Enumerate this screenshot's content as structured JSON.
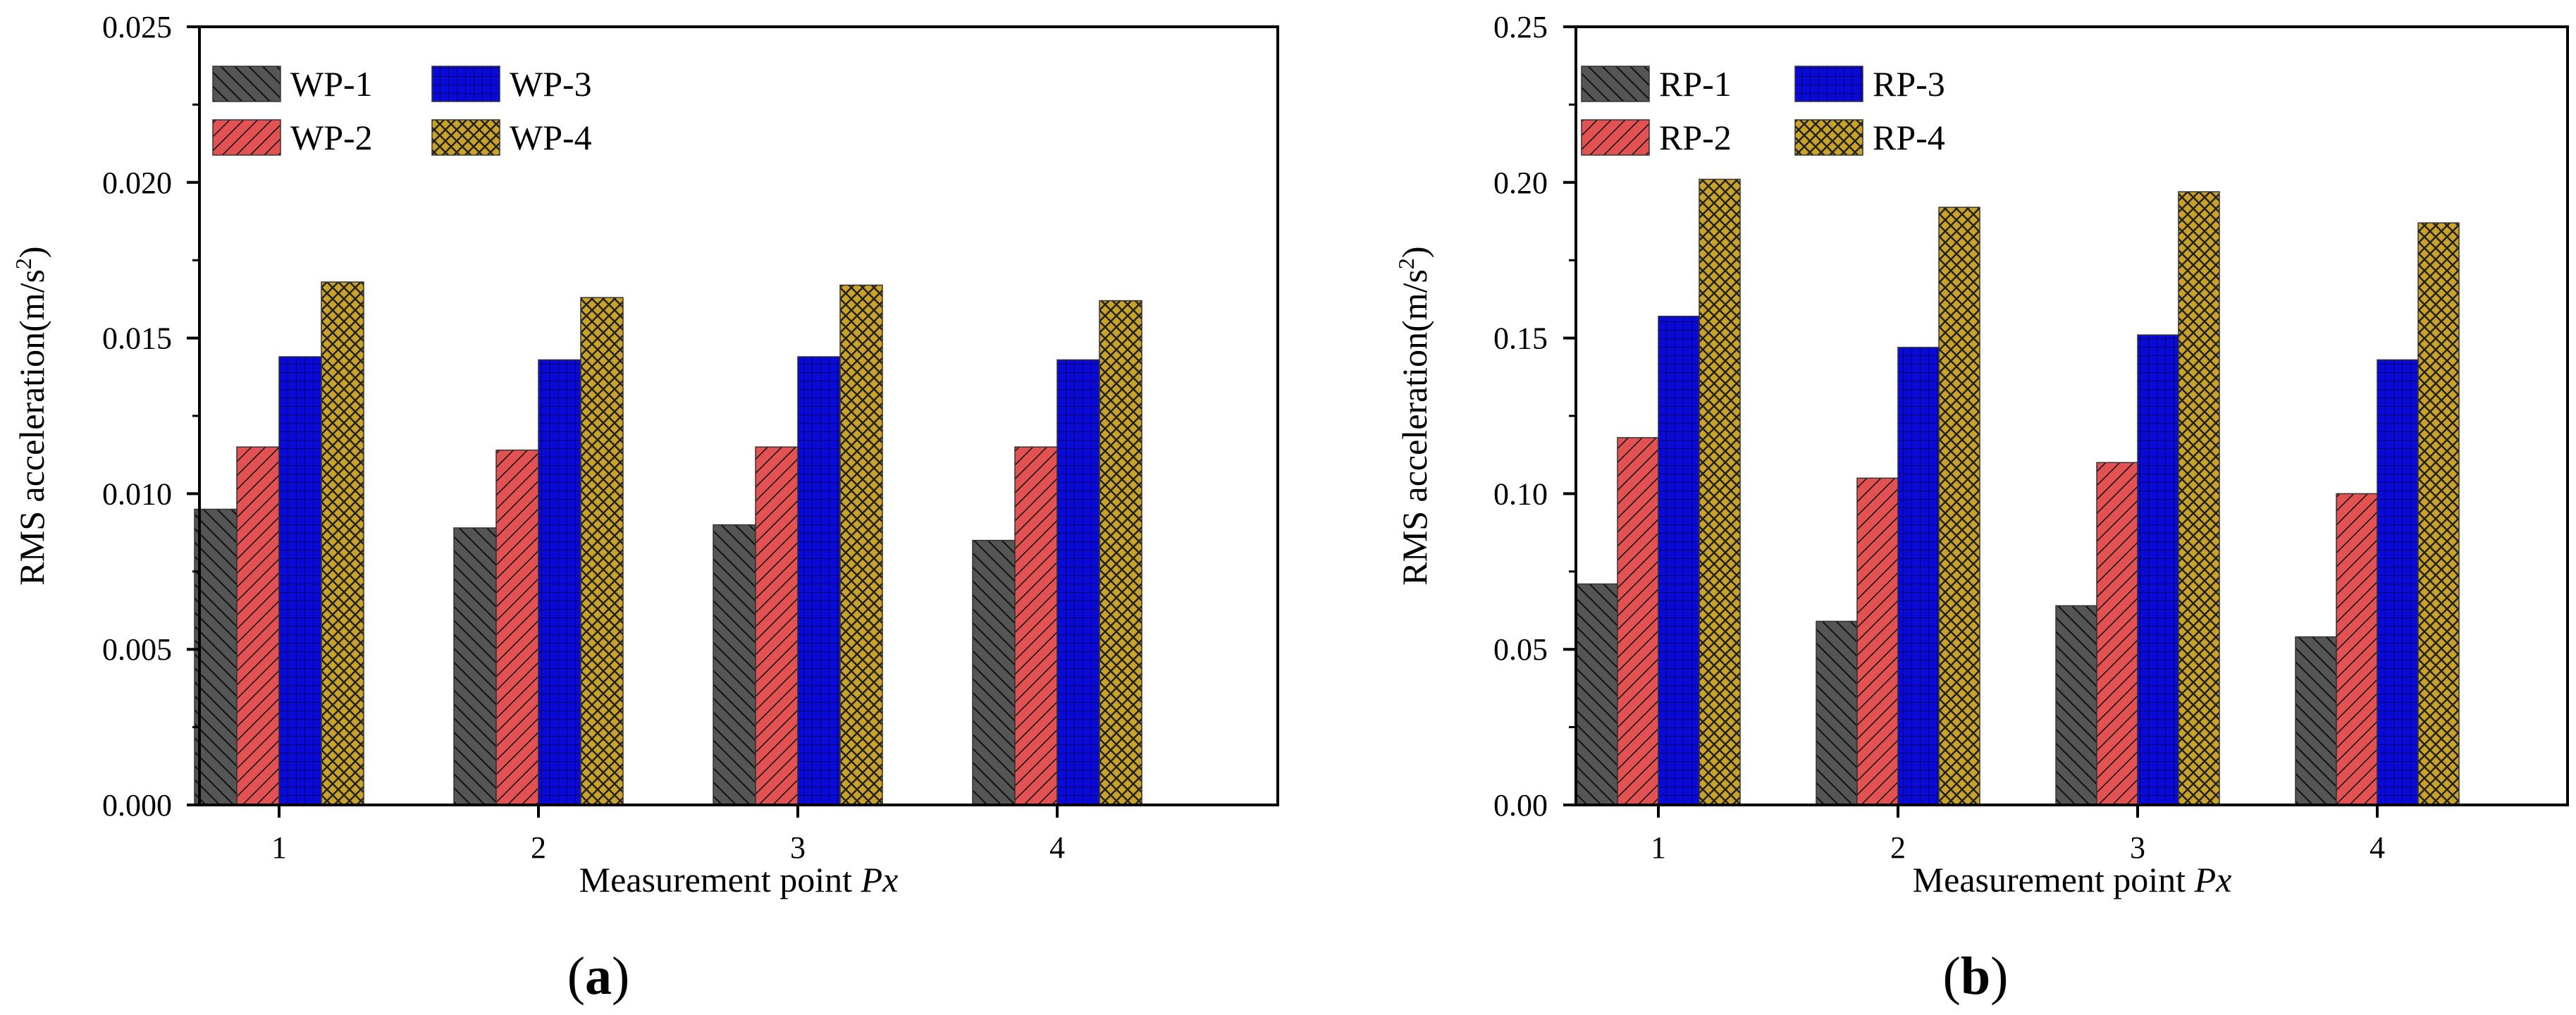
{
  "chart_data": [
    {
      "type": "bar",
      "panel_label": "(a)",
      "panel_letter": "a",
      "categories": [
        "1",
        "2",
        "3",
        "4"
      ],
      "series": [
        {
          "name": "WP-1",
          "values": [
            0.0095,
            0.0089,
            0.009,
            0.0085
          ],
          "color": "#555555",
          "pattern": "diag-left"
        },
        {
          "name": "WP-2",
          "values": [
            0.0115,
            0.0114,
            0.0115,
            0.0115
          ],
          "color": "#e35252",
          "pattern": "diag-right"
        },
        {
          "name": "WP-3",
          "values": [
            0.0144,
            0.0143,
            0.0144,
            0.0143
          ],
          "color": "#0a0ad8",
          "pattern": "grid"
        },
        {
          "name": "WP-4",
          "values": [
            0.0168,
            0.0163,
            0.0167,
            0.0162
          ],
          "color": "#c9a227",
          "pattern": "cross"
        }
      ],
      "ylim": [
        0,
        0.025
      ],
      "yticks": [
        "0.000",
        "0.005",
        "0.010",
        "0.015",
        "0.020",
        "0.025"
      ],
      "ylabel": "RMS acceleration(m/s",
      "ylabel_sup": "2",
      "ylabel_close": ")",
      "xlabel": "Measurement point ",
      "xlabel_italic": "Px",
      "legend": "top-left"
    },
    {
      "type": "bar",
      "panel_label": "(b)",
      "panel_letter": "b",
      "categories": [
        "1",
        "2",
        "3",
        "4"
      ],
      "series": [
        {
          "name": "RP-1",
          "values": [
            0.071,
            0.059,
            0.064,
            0.054
          ],
          "color": "#555555",
          "pattern": "diag-left"
        },
        {
          "name": "RP-2",
          "values": [
            0.118,
            0.105,
            0.11,
            0.1
          ],
          "color": "#e35252",
          "pattern": "diag-right"
        },
        {
          "name": "RP-3",
          "values": [
            0.157,
            0.147,
            0.151,
            0.143
          ],
          "color": "#0a0ad8",
          "pattern": "grid"
        },
        {
          "name": "RP-4",
          "values": [
            0.201,
            0.192,
            0.197,
            0.187
          ],
          "color": "#c9a227",
          "pattern": "cross"
        }
      ],
      "ylim": [
        0,
        0.25
      ],
      "yticks": [
        "0.00",
        "0.05",
        "0.10",
        "0.15",
        "0.20",
        "0.25"
      ],
      "ylabel": "RMS acceleration(m/s",
      "ylabel_sup": "2",
      "ylabel_close": ")",
      "xlabel": "Measurement point ",
      "xlabel_italic": "Px",
      "legend": "top-left"
    }
  ]
}
